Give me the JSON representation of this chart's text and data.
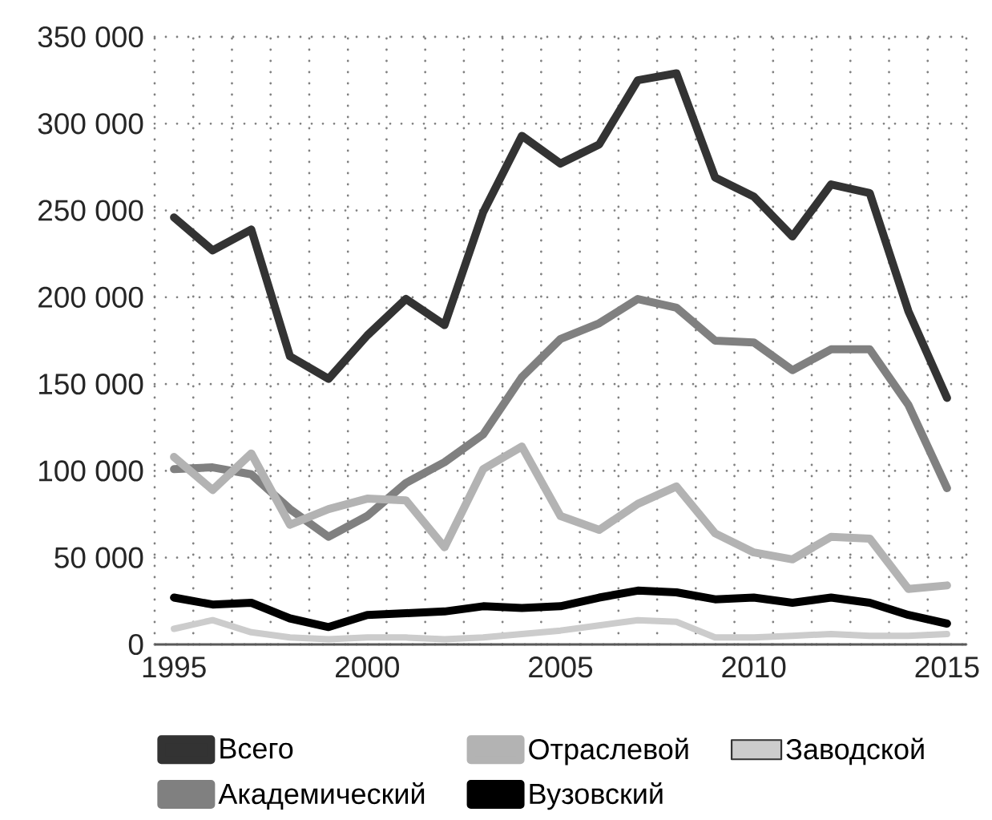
{
  "chart_data": {
    "type": "line",
    "x": [
      1995,
      1996,
      1997,
      1998,
      1999,
      2000,
      2001,
      2002,
      2003,
      2004,
      2005,
      2006,
      2007,
      2008,
      2009,
      2010,
      2011,
      2012,
      2013,
      2014,
      2015
    ],
    "series": [
      {
        "name": "Всего",
        "color": "#333333",
        "values": [
          246000,
          227000,
          239000,
          166000,
          153000,
          178000,
          199000,
          184000,
          249000,
          293000,
          277000,
          288000,
          325000,
          329000,
          269000,
          258000,
          235000,
          265000,
          260000,
          192000,
          142000
        ]
      },
      {
        "name": "Академический",
        "color": "#808080",
        "values": [
          101000,
          102000,
          98000,
          78000,
          62000,
          74000,
          93000,
          105000,
          121000,
          154000,
          176000,
          185000,
          199000,
          194000,
          175000,
          174000,
          158000,
          170000,
          170000,
          138000,
          90000
        ]
      },
      {
        "name": "Отраслевой",
        "color": "#b3b3b3",
        "values": [
          108000,
          89000,
          110000,
          69000,
          78000,
          84000,
          83000,
          56000,
          101000,
          114000,
          74000,
          66000,
          81000,
          91000,
          64000,
          53000,
          49000,
          62000,
          61000,
          32000,
          34000
        ]
      },
      {
        "name": "Вузовский",
        "color": "#000000",
        "values": [
          27000,
          23000,
          24000,
          15000,
          10000,
          17000,
          18000,
          19000,
          22000,
          21000,
          22000,
          27000,
          31000,
          30000,
          26000,
          27000,
          24000,
          27000,
          24000,
          17000,
          12000
        ]
      },
      {
        "name": "Заводской",
        "color": "#cccccc",
        "values": [
          9000,
          14000,
          7000,
          4000,
          3000,
          4000,
          4000,
          3000,
          4000,
          6000,
          8000,
          11000,
          14000,
          13000,
          4000,
          4000,
          5000,
          6000,
          5000,
          5000,
          6000
        ]
      }
    ],
    "xlim": [
      1994.5,
      2015.5
    ],
    "xticks": [
      {
        "value": 1994.5,
        "label": null
      },
      1995,
      {
        "value": 1995.5,
        "label": null
      },
      {
        "value": 1996.5,
        "label": null
      },
      {
        "value": 1997.5,
        "label": null
      },
      {
        "value": 1998.5,
        "label": null
      },
      {
        "value": 1999.5,
        "label": null
      },
      2000,
      {
        "value": 2000.5,
        "label": null
      },
      {
        "value": 2001.5,
        "label": null
      },
      {
        "value": 2002.5,
        "label": null
      },
      {
        "value": 2003.5,
        "label": null
      },
      {
        "value": 2004.5,
        "label": null
      },
      2005,
      {
        "value": 2005.5,
        "label": null
      },
      {
        "value": 2006.5,
        "label": null
      },
      {
        "value": 2007.5,
        "label": null
      },
      {
        "value": 2008.5,
        "label": null
      },
      {
        "value": 2009.5,
        "label": null
      },
      2010,
      {
        "value": 2010.5,
        "label": null
      },
      {
        "value": 2011.5,
        "label": null
      },
      {
        "value": 2012.5,
        "label": null
      },
      {
        "value": 2013.5,
        "label": null
      },
      {
        "value": 2014.5,
        "label": null
      },
      2015,
      {
        "value": 2015.5,
        "label": null
      }
    ],
    "ylim": [
      0,
      350000
    ],
    "yticks": [
      0,
      {
        "value": 50000,
        "label": "50 000"
      },
      {
        "value": 100000,
        "label": "100 000"
      },
      {
        "value": 150000,
        "label": "150 000"
      },
      {
        "value": 200000,
        "label": "200 000"
      },
      {
        "value": 250000,
        "label": "250 000"
      },
      {
        "value": 300000,
        "label": "300 000"
      },
      {
        "value": 350000,
        "label": "350 000"
      }
    ],
    "grid": true,
    "legend": "bottom"
  }
}
